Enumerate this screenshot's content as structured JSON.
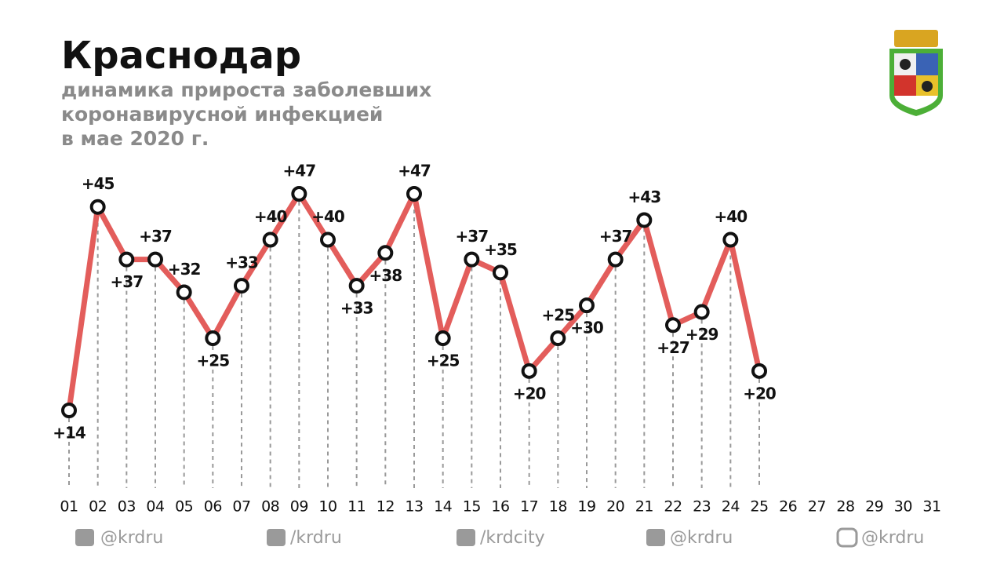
{
  "chart_data": {
    "type": "line",
    "title": "Краснодар",
    "subtitle": [
      "динамика прироста заболевших",
      "коронавирусной инфекцией",
      "в мае 2020 г."
    ],
    "categories": [
      "01",
      "02",
      "03",
      "04",
      "05",
      "06",
      "07",
      "08",
      "09",
      "10",
      "11",
      "12",
      "13",
      "14",
      "15",
      "16",
      "17",
      "18",
      "19",
      "20",
      "21",
      "22",
      "23",
      "24",
      "25",
      "26",
      "27",
      "28",
      "29",
      "30",
      "31"
    ],
    "series": [
      {
        "color": "#e35d5b",
        "values": [
          14,
          45,
          37,
          37,
          32,
          25,
          33,
          40,
          47,
          40,
          33,
          38,
          47,
          25,
          37,
          35,
          20,
          25,
          30,
          37,
          43,
          27,
          29,
          40,
          20,
          null,
          null,
          null,
          null,
          null,
          null
        ],
        "value_labels": [
          "+14",
          "+45",
          "+37",
          "+37",
          "+32",
          "+25",
          "+33",
          "+40",
          "+47",
          "+40",
          "+33",
          "+38",
          "+47",
          "+25",
          "+37",
          "+35",
          "+20",
          "+25",
          "+30",
          "+37",
          "+43",
          "+27",
          "+29",
          "+40",
          "+20",
          null,
          null,
          null,
          null,
          null,
          null
        ]
      }
    ]
  },
  "footer": [
    "@krdru",
    "/krdru",
    "/krdcity",
    "@krdru",
    "@krdru"
  ]
}
